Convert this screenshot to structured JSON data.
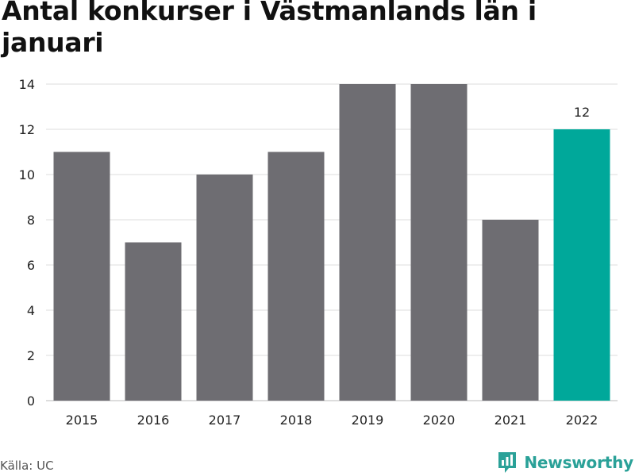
{
  "header": {
    "title": "Antal konkurser i Västmanlands län i januari"
  },
  "footer": {
    "source": "Källa: UC",
    "brand": "Newsworthy",
    "brand_icon": "bar-chart-logo-icon"
  },
  "colors": {
    "bar": "#6e6d72",
    "highlight": "#00a89a",
    "grid": "#dddddd",
    "brand": "#2aa198"
  },
  "chart_data": {
    "type": "bar",
    "title": "Antal konkurser i Västmanlands län i januari",
    "xlabel": "",
    "ylabel": "",
    "categories": [
      "2015",
      "2016",
      "2017",
      "2018",
      "2019",
      "2020",
      "2021",
      "2022"
    ],
    "values": [
      11,
      7,
      10,
      11,
      14,
      14,
      8,
      12
    ],
    "highlight_index": 7,
    "data_labels": [
      {
        "index": 7,
        "text": "12"
      }
    ],
    "ylim": [
      0,
      14
    ],
    "yticks": [
      0,
      2,
      4,
      6,
      8,
      10,
      12,
      14
    ],
    "grid": true,
    "legend": "none"
  }
}
